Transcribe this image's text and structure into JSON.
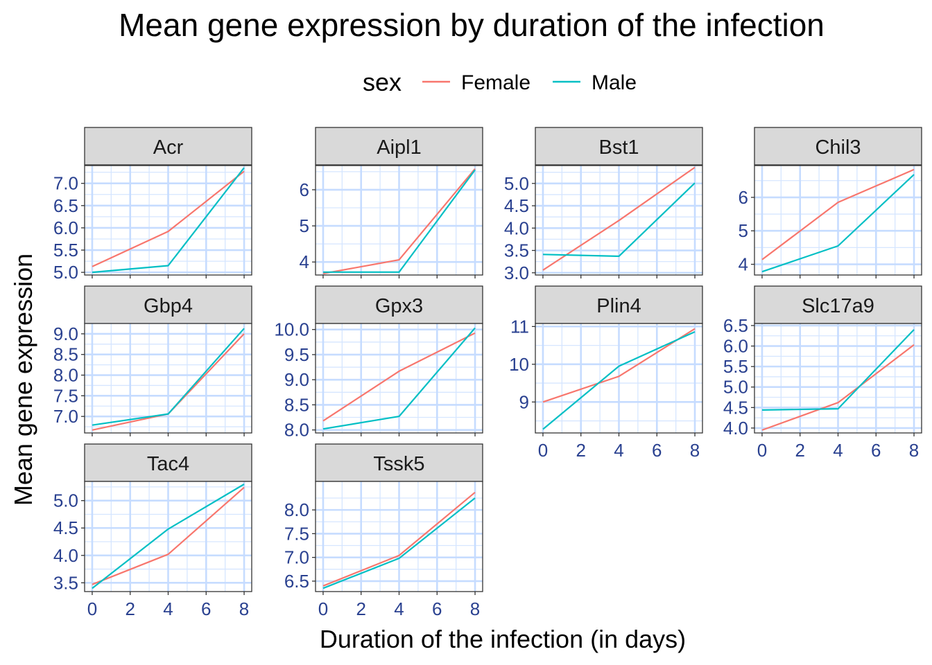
{
  "chart_data": {
    "type": "line",
    "title": "Mean gene expression by duration of the infection",
    "xlabel": "Duration of the infection (in days)",
    "ylabel": "Mean gene expression",
    "legend": {
      "title": "sex",
      "position": "top",
      "entries": [
        {
          "name": "Female",
          "color": "#F8766D"
        },
        {
          "name": "Male",
          "color": "#00BFC4"
        }
      ]
    },
    "x": [
      0,
      4,
      8
    ],
    "xlim": [
      -0.4,
      8.4
    ],
    "xticks": [
      0,
      2,
      4,
      6,
      8
    ],
    "grid": true,
    "panels": [
      {
        "gene": "Acr",
        "ylim": [
          4.94,
          7.4
        ],
        "yticks": [
          5.0,
          5.5,
          6.0,
          6.5,
          7.0
        ],
        "tick_labels": [
          "5.0",
          "5.5",
          "6.0",
          "6.5",
          "7.0"
        ],
        "series": [
          {
            "name": "Female",
            "values": [
              5.13,
              5.92,
              7.27
            ]
          },
          {
            "name": "Male",
            "values": [
              5.0,
              5.15,
              7.35
            ]
          }
        ]
      },
      {
        "gene": "Aipl1",
        "ylim": [
          3.64,
          6.67
        ],
        "yticks": [
          4,
          5,
          6
        ],
        "tick_labels": [
          "4",
          "5",
          "6"
        ],
        "series": [
          {
            "name": "Female",
            "values": [
              3.68,
              4.06,
              6.58
            ]
          },
          {
            "name": "Male",
            "values": [
              3.72,
              3.72,
              6.55
            ]
          }
        ]
      },
      {
        "gene": "Bst1",
        "ylim": [
          2.95,
          5.4
        ],
        "yticks": [
          3.0,
          3.5,
          4.0,
          4.5,
          5.0
        ],
        "tick_labels": [
          "3.0",
          "3.5",
          "4.0",
          "4.5",
          "5.0"
        ],
        "series": [
          {
            "name": "Female",
            "values": [
              3.06,
              4.17,
              5.36
            ]
          },
          {
            "name": "Male",
            "values": [
              3.41,
              3.37,
              5.01
            ]
          }
        ]
      },
      {
        "gene": "Chil3",
        "ylim": [
          3.68,
          6.95
        ],
        "yticks": [
          4,
          5,
          6
        ],
        "tick_labels": [
          "4",
          "5",
          "6"
        ],
        "series": [
          {
            "name": "Female",
            "values": [
              4.14,
              5.85,
              6.83
            ]
          },
          {
            "name": "Male",
            "values": [
              3.78,
              4.55,
              6.68
            ]
          }
        ]
      },
      {
        "gene": "Gbp4",
        "ylim": [
          6.6,
          9.25
        ],
        "yticks": [
          7.0,
          7.5,
          8.0,
          8.5,
          9.0
        ],
        "tick_labels": [
          "7.0",
          "7.5",
          "8.0",
          "8.5",
          "9.0"
        ],
        "series": [
          {
            "name": "Female",
            "values": [
              6.67,
              7.06,
              9.0
            ]
          },
          {
            "name": "Male",
            "values": [
              6.79,
              7.06,
              9.13
            ]
          }
        ]
      },
      {
        "gene": "Gpx3",
        "ylim": [
          7.94,
          10.12
        ],
        "yticks": [
          8.0,
          8.5,
          9.0,
          9.5,
          10.0
        ],
        "tick_labels": [
          "8.0",
          "8.5",
          "9.0",
          "9.5",
          "10.0"
        ],
        "series": [
          {
            "name": "Female",
            "values": [
              8.18,
              9.17,
              9.93
            ]
          },
          {
            "name": "Male",
            "values": [
              8.02,
              8.27,
              10.03
            ]
          }
        ]
      },
      {
        "gene": "Plin4",
        "ylim": [
          8.18,
          11.08
        ],
        "yticks": [
          9,
          10,
          11
        ],
        "tick_labels": [
          "9",
          "10",
          "11"
        ],
        "series": [
          {
            "name": "Female",
            "values": [
              9.0,
              9.68,
              10.94
            ]
          },
          {
            "name": "Male",
            "values": [
              8.28,
              9.95,
              10.86
            ]
          }
        ]
      },
      {
        "gene": "Slc17a9",
        "ylim": [
          3.88,
          6.55
        ],
        "yticks": [
          4.0,
          4.5,
          5.0,
          5.5,
          6.0,
          6.5
        ],
        "tick_labels": [
          "4.0",
          "4.5",
          "5.0",
          "5.5",
          "6.0",
          "6.5"
        ],
        "series": [
          {
            "name": "Female",
            "values": [
              3.95,
              4.62,
              6.03
            ]
          },
          {
            "name": "Male",
            "values": [
              4.44,
              4.47,
              6.4
            ]
          }
        ]
      },
      {
        "gene": "Tac4",
        "ylim": [
          3.34,
          5.35
        ],
        "yticks": [
          3.5,
          4.0,
          4.5,
          5.0
        ],
        "tick_labels": [
          "3.5",
          "4.0",
          "4.5",
          "5.0"
        ],
        "series": [
          {
            "name": "Female",
            "values": [
              3.47,
              4.02,
              5.24
            ]
          },
          {
            "name": "Male",
            "values": [
              3.4,
              4.48,
              5.3
            ]
          }
        ]
      },
      {
        "gene": "Tssk5",
        "ylim": [
          6.28,
          8.6
        ],
        "yticks": [
          6.5,
          7.0,
          7.5,
          8.0
        ],
        "tick_labels": [
          "6.5",
          "7.0",
          "7.5",
          "8.0"
        ],
        "series": [
          {
            "name": "Female",
            "values": [
              6.4,
              7.04,
              8.37
            ]
          },
          {
            "name": "Male",
            "values": [
              6.35,
              6.98,
              8.25
            ]
          }
        ]
      }
    ]
  }
}
